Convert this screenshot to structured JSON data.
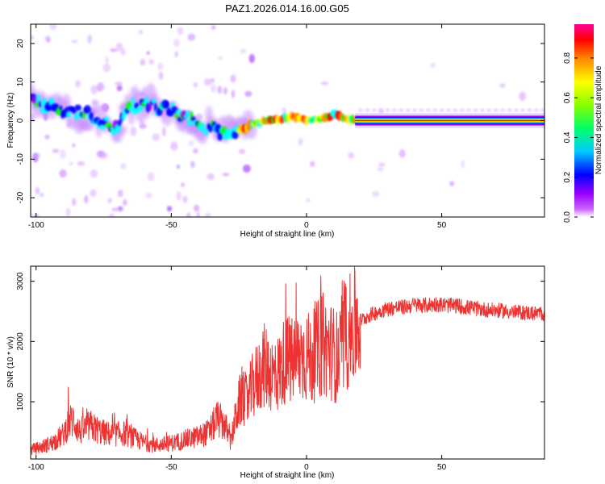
{
  "figure_title": "PAZ1.2026.014.16.00.G05",
  "chart_data": [
    {
      "type": "heatmap",
      "title": "PAZ1.2026.014.16.00.G05",
      "xlabel": "Height of straight line (km)",
      "ylabel": "Frequency (Hz)",
      "xlim": [
        -102,
        88
      ],
      "ylim": [
        -25,
        25
      ],
      "x_ticks": [
        -100,
        -50,
        0,
        50
      ],
      "y_ticks": [
        -20,
        -10,
        0,
        10,
        20
      ],
      "colorbar": {
        "label": "Normalized spectral amplitude",
        "range": [
          0,
          0.97
        ],
        "ticks": [
          0.0,
          0.2,
          0.4,
          0.6,
          0.8
        ],
        "tick_labels": [
          "0.0",
          "0.2",
          "0.4",
          "0.6",
          "0.8"
        ],
        "colors": [
          "#ffffff",
          "#9900ff",
          "#0000ff",
          "#00ffff",
          "#00ff00",
          "#ffff00",
          "#ff8800",
          "#ff0000",
          "#ff00aa"
        ]
      },
      "ridge": {
        "height_km": [
          -102,
          -95,
          -90,
          -85,
          -80,
          -75,
          -70,
          -65,
          -60,
          -55,
          -50,
          -45,
          -40,
          -35,
          -30,
          -25,
          -20,
          -15,
          -10,
          -5,
          0,
          5,
          10,
          15,
          20,
          30,
          50,
          70,
          88
        ],
        "frequency_hz": [
          5,
          3.5,
          2.5,
          2,
          1.5,
          -0.5,
          -2,
          3.5,
          4.5,
          3.5,
          2.5,
          1,
          -1,
          -2,
          -3,
          -2.5,
          -1,
          0,
          0.5,
          1,
          0,
          0.5,
          1.5,
          0.5,
          0,
          0,
          0,
          0,
          0
        ]
      }
    },
    {
      "type": "line",
      "xlabel": "Height of straight line (km)",
      "ylabel": "SNR (10 * v/v)",
      "xlim": [
        -102,
        88
      ],
      "ylim": [
        50,
        3250
      ],
      "x_ticks": [
        -100,
        -50,
        0,
        50
      ],
      "y_ticks": [
        1000,
        2000,
        3000
      ],
      "series": [
        {
          "name": "SNR",
          "color": "#ee3333",
          "x": [
            -102,
            -98,
            -94,
            -90,
            -88,
            -86,
            -84,
            -80,
            -76,
            -72,
            -68,
            -64,
            -60,
            -56,
            -52,
            -48,
            -44,
            -40,
            -36,
            -33,
            -30,
            -28,
            -26,
            -24,
            -22,
            -20,
            -18,
            -16,
            -14,
            -12,
            -10,
            -8,
            -6,
            -4,
            -2,
            0,
            2,
            4,
            6,
            8,
            10,
            12,
            14,
            16,
            18,
            20,
            24,
            28,
            32,
            36,
            40,
            44,
            48,
            52,
            56,
            60,
            64,
            68,
            72,
            76,
            80,
            84,
            88
          ],
          "y": [
            200,
            250,
            320,
            450,
            650,
            700,
            500,
            600,
            500,
            450,
            480,
            400,
            320,
            280,
            300,
            330,
            380,
            420,
            500,
            720,
            600,
            320,
            800,
            1100,
            1000,
            1250,
            1400,
            1600,
            1550,
            1400,
            1500,
            1700,
            1650,
            1700,
            1780,
            1750,
            1700,
            1850,
            1950,
            1900,
            1800,
            1700,
            2000,
            2150,
            2250,
            2350,
            2450,
            2520,
            2560,
            2570,
            2610,
            2600,
            2620,
            2600,
            2590,
            2560,
            2540,
            2520,
            2510,
            2490,
            2480,
            2470,
            2460
          ]
        }
      ]
    }
  ]
}
